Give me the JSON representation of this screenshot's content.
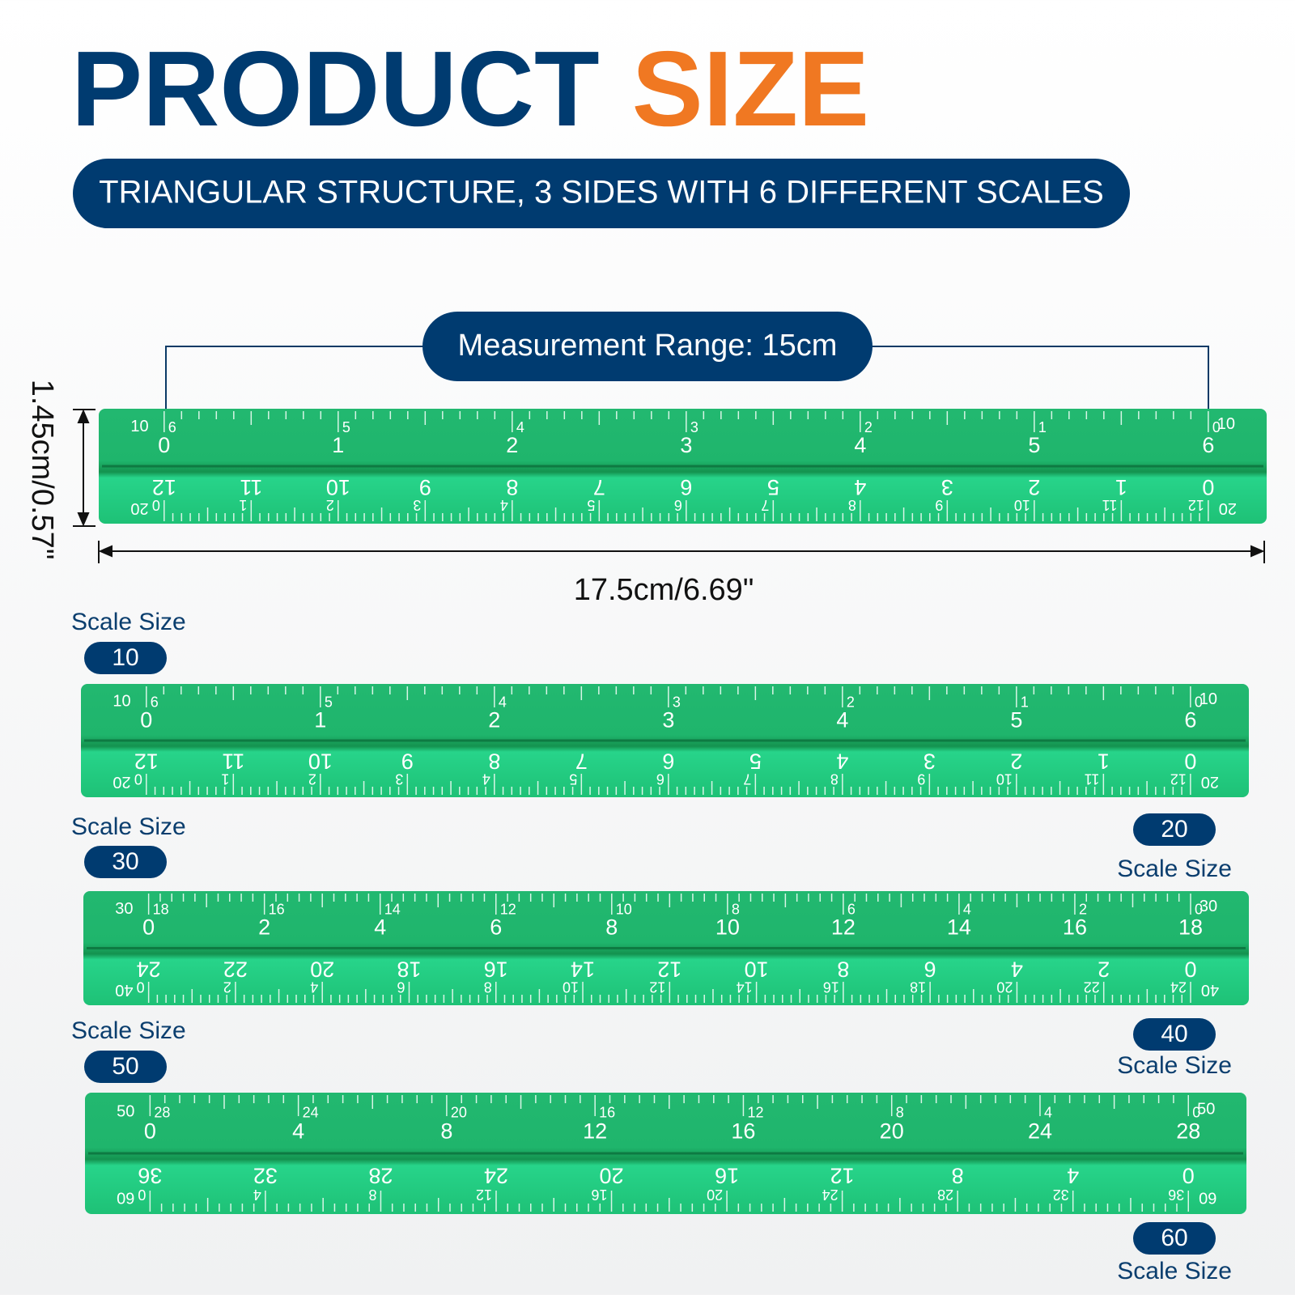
{
  "header": {
    "title_part1": "PRODUCT",
    "title_part2": "SIZE",
    "subtitle": "TRIANGULAR STRUCTURE, 3 SIDES WITH 6 DIFFERENT SCALES"
  },
  "dimensions": {
    "range": "Measurement Range: 15cm",
    "height": "1.45cm/0.57\"",
    "length": "17.5cm/6.69\""
  },
  "scale_caption": "Scale Size",
  "scales": [
    "10",
    "20",
    "30",
    "40",
    "50",
    "60"
  ],
  "rulers": [
    {
      "top_end": [
        "10",
        "10"
      ],
      "top_major": [
        0,
        1,
        2,
        3,
        4,
        5,
        6
      ],
      "top_minor": [
        6,
        5,
        4,
        3,
        2,
        1,
        0
      ],
      "bottom_end": [
        "20",
        "20"
      ],
      "bottom_major": [
        12,
        11,
        10,
        9,
        8,
        7,
        6,
        5,
        4,
        3,
        2,
        1,
        0
      ],
      "bottom_minor": [
        0,
        1,
        2,
        3,
        4,
        5,
        6,
        7,
        8,
        9,
        10,
        11,
        12
      ]
    },
    {
      "top_end": [
        "10",
        "10"
      ],
      "top_major": [
        0,
        1,
        2,
        3,
        4,
        5,
        6
      ],
      "top_minor": [
        6,
        5,
        4,
        3,
        2,
        1,
        0
      ],
      "bottom_end": [
        "20",
        "20"
      ],
      "bottom_major": [
        12,
        11,
        10,
        9,
        8,
        7,
        6,
        5,
        4,
        3,
        2,
        1,
        0
      ],
      "bottom_minor": [
        0,
        1,
        2,
        3,
        4,
        5,
        6,
        7,
        8,
        9,
        10,
        11,
        12
      ]
    },
    {
      "top_end": [
        "30",
        "30"
      ],
      "top_major": [
        0,
        2,
        4,
        6,
        8,
        10,
        12,
        14,
        16,
        18
      ],
      "top_minor": [
        18,
        16,
        14,
        12,
        10,
        8,
        6,
        4,
        2,
        0
      ],
      "bottom_end": [
        "40",
        "40"
      ],
      "bottom_major": [
        24,
        22,
        20,
        18,
        16,
        14,
        12,
        10,
        8,
        6,
        4,
        2,
        0
      ],
      "bottom_minor": [
        0,
        2,
        4,
        6,
        8,
        10,
        12,
        14,
        16,
        18,
        20,
        22,
        24
      ]
    },
    {
      "top_end": [
        "50",
        "50"
      ],
      "top_major": [
        0,
        4,
        8,
        12,
        16,
        20,
        24,
        28
      ],
      "top_minor": [
        28,
        24,
        20,
        16,
        12,
        8,
        4,
        0
      ],
      "bottom_end": [
        "60",
        "60"
      ],
      "bottom_major": [
        36,
        32,
        28,
        24,
        20,
        16,
        12,
        8,
        4,
        0
      ],
      "bottom_minor": [
        0,
        4,
        8,
        12,
        16,
        20,
        24,
        28,
        32,
        36
      ]
    }
  ]
}
